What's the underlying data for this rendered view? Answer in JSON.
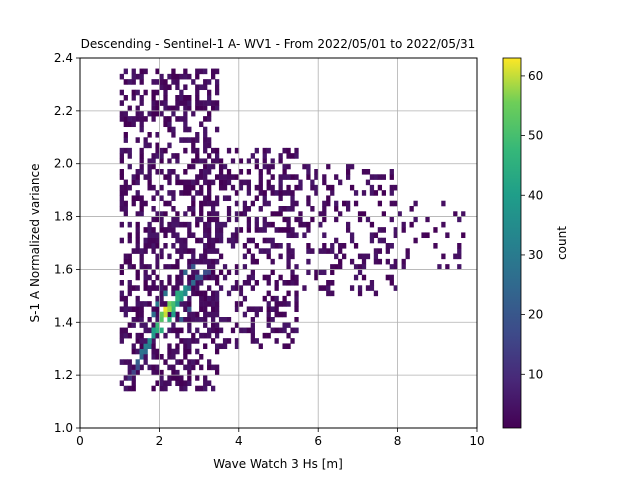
{
  "chart_data": {
    "type": "heatmap",
    "title": "Descending - Sentinel-1 A- WV1 - From 2022/05/01 to 2022/05/31",
    "xlabel": "Wave Watch 3 Hs [m]",
    "ylabel": "S-1 A Normalized variance",
    "xlim": [
      0,
      10
    ],
    "ylim": [
      1.0,
      2.4
    ],
    "xticks": [
      "0",
      "2",
      "4",
      "6",
      "8",
      "10"
    ],
    "yticks": [
      "1.0",
      "1.2",
      "1.4",
      "1.6",
      "1.8",
      "2.0",
      "2.2",
      "2.4"
    ],
    "grid": true,
    "colormap": "viridis",
    "colorbar": {
      "label": "count",
      "range": [
        1,
        63
      ],
      "ticks": [
        "10",
        "20",
        "30",
        "40",
        "50",
        "60"
      ]
    },
    "bin_width_x": 0.1,
    "bin_height_y": 0.02,
    "cells": [
      [
        2.1,
        1.44,
        62
      ],
      [
        2.2,
        1.44,
        58
      ],
      [
        2.1,
        1.42,
        60
      ],
      [
        2.2,
        1.46,
        55
      ],
      [
        2.0,
        1.4,
        52
      ],
      [
        2.3,
        1.46,
        50
      ],
      [
        2.0,
        1.42,
        54
      ],
      [
        1.9,
        1.38,
        48
      ],
      [
        2.4,
        1.48,
        46
      ],
      [
        1.9,
        1.36,
        45
      ],
      [
        2.3,
        1.44,
        48
      ],
      [
        2.4,
        1.5,
        44
      ],
      [
        2.5,
        1.5,
        42
      ],
      [
        1.8,
        1.36,
        40
      ],
      [
        2.5,
        1.48,
        40
      ],
      [
        1.8,
        1.34,
        38
      ],
      [
        2.6,
        1.52,
        36
      ],
      [
        1.7,
        1.32,
        35
      ],
      [
        2.6,
        1.5,
        34
      ],
      [
        2.7,
        1.52,
        30
      ],
      [
        1.6,
        1.3,
        32
      ],
      [
        2.0,
        1.36,
        44
      ],
      [
        2.2,
        1.4,
        46
      ],
      [
        2.3,
        1.42,
        40
      ],
      [
        1.7,
        1.3,
        30
      ],
      [
        1.5,
        1.28,
        28
      ],
      [
        2.8,
        1.54,
        26
      ],
      [
        2.4,
        1.46,
        38
      ],
      [
        1.6,
        1.28,
        26
      ],
      [
        1.5,
        1.26,
        24
      ],
      [
        1.4,
        1.24,
        22
      ],
      [
        2.9,
        1.56,
        22
      ],
      [
        3.0,
        1.56,
        20
      ],
      [
        1.9,
        1.46,
        30
      ],
      [
        2.1,
        1.5,
        28
      ],
      [
        1.4,
        1.22,
        18
      ],
      [
        1.3,
        1.2,
        15
      ],
      [
        2.5,
        1.4,
        22
      ],
      [
        2.7,
        1.44,
        20
      ],
      [
        3.1,
        1.58,
        18
      ],
      [
        1.8,
        1.42,
        26
      ],
      [
        2.6,
        1.58,
        24
      ],
      [
        2.8,
        1.6,
        20
      ],
      [
        1.2,
        1.18,
        12
      ],
      [
        3.2,
        1.58,
        16
      ]
    ],
    "sparse_regions": [
      {
        "x": [
          1.0,
          3.5
        ],
        "y": [
          1.14,
          2.36
        ]
      },
      {
        "x": [
          3.0,
          5.5
        ],
        "y": [
          1.3,
          2.06
        ]
      },
      {
        "x": [
          5.0,
          8.0
        ],
        "y": [
          1.5,
          2.0
        ]
      },
      {
        "x": [
          8.0,
          9.7
        ],
        "y": [
          1.6,
          1.86
        ]
      }
    ]
  }
}
